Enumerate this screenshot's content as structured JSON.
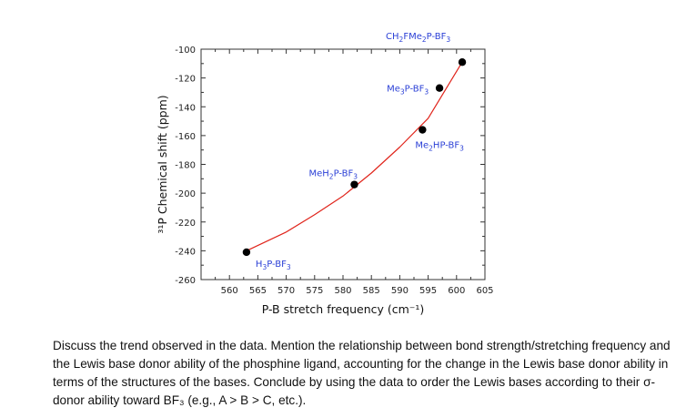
{
  "chart_data": {
    "type": "scatter",
    "xlabel": "P-B stretch frequency (cm⁻¹)",
    "ylabel": "³¹P Chemical shift (ppm)",
    "xlim": [
      555,
      605
    ],
    "ylim": [
      -260,
      -100
    ],
    "xticks": [
      560,
      565,
      570,
      575,
      580,
      585,
      590,
      595,
      600,
      605
    ],
    "yticks": [
      -100,
      -120,
      -140,
      -160,
      -180,
      -200,
      -220,
      -240,
      -260
    ],
    "points": [
      {
        "label": "H3P-BF3",
        "base": "H",
        "sub1": "3",
        "mid": "P-BF",
        "sub2": "3",
        "x": 563,
        "y": -241
      },
      {
        "label": "MeH2P-BF3",
        "base": "MeH",
        "sub1": "2",
        "mid": "P-BF",
        "sub2": "3",
        "x": 582,
        "y": -194
      },
      {
        "label": "Me2HP-BF3",
        "base": "Me",
        "sub1": "2",
        "mid": "HP-BF",
        "sub2": "3",
        "x": 594,
        "y": -156
      },
      {
        "label": "Me3P-BF3",
        "base": "Me",
        "sub1": "3",
        "mid": "P-BF",
        "sub2": "3",
        "x": 597,
        "y": -127
      },
      {
        "label": "CH2FMe2P-BF3",
        "parts": [
          [
            "CH",
            ""
          ],
          [
            "2",
            "sub"
          ],
          [
            "FMe",
            ""
          ],
          [
            "2",
            "sub"
          ],
          [
            "P-BF",
            ""
          ],
          [
            "3",
            "sub"
          ]
        ],
        "x": 601,
        "y": -109
      }
    ],
    "fit_line": {
      "type": "polynomial",
      "x": [
        563,
        570,
        575,
        580,
        585,
        590,
        595,
        601
      ],
      "y": [
        -240,
        -227,
        -215,
        -202,
        -186,
        -168,
        -148,
        -109
      ]
    },
    "colors": {
      "points": "#000000",
      "fit": "#e0241b",
      "labels": "#2a3fd6"
    }
  },
  "question": "Discuss the trend observed in the data. Mention the relationship between bond strength/stretching frequency and the Lewis base donor ability of the phosphine ligand, accounting for the change in the Lewis base donor ability in terms of the structures of the bases. Conclude by using the data to order the Lewis bases according to their σ-donor ability toward BF₃ (e.g., A > B > C, etc.)."
}
